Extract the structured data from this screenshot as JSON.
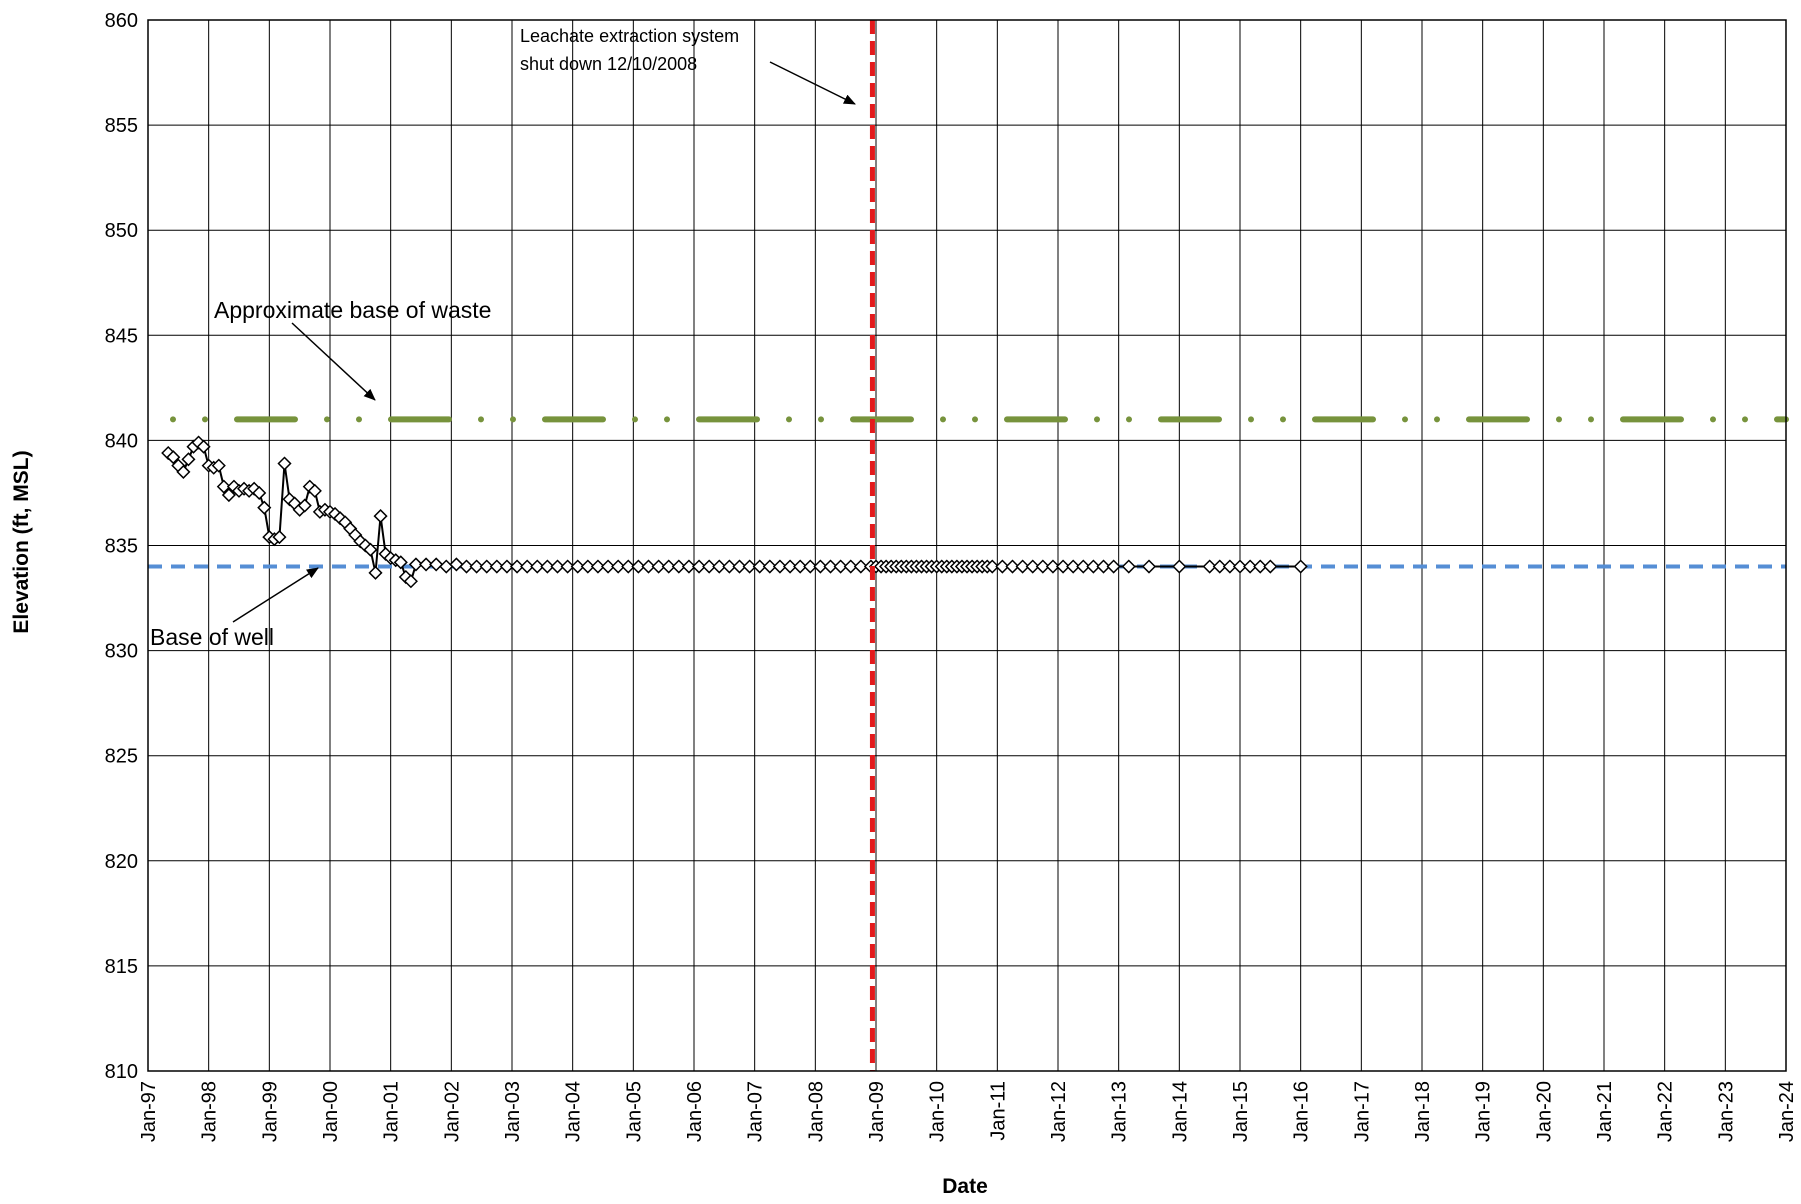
{
  "chart_data": {
    "type": "scatter",
    "title": "",
    "xlabel": "Date",
    "ylabel": "Elevation (ft, MSL)",
    "xlim": [
      "1997-01",
      "2024-01"
    ],
    "ylim": [
      810,
      860
    ],
    "grid": true,
    "legend": "none",
    "x_tick_labels": [
      "Jan-97",
      "Jan-98",
      "Jan-99",
      "Jan-00",
      "Jan-01",
      "Jan-02",
      "Jan-03",
      "Jan-04",
      "Jan-05",
      "Jan-06",
      "Jan-07",
      "Jan-08",
      "Jan-09",
      "Jan-10",
      "Jan-11",
      "Jan-12",
      "Jan-13",
      "Jan-14",
      "Jan-15",
      "Jan-16",
      "Jan-17",
      "Jan-18",
      "Jan-19",
      "Jan-20",
      "Jan-21",
      "Jan-22",
      "Jan-23",
      "Jan-24"
    ],
    "y_ticks": [
      810,
      815,
      820,
      825,
      830,
      835,
      840,
      845,
      850,
      855,
      860
    ],
    "colors": {
      "measured": "#000000",
      "base_of_waste": "#77933c",
      "base_of_well": "#558ed5",
      "shutdown": "#e31a1c",
      "grid": "#000000"
    },
    "series": [
      {
        "name": "",
        "marker": "diamond",
        "points": [
          [
            "1997-05",
            839.4
          ],
          [
            "1997-06",
            839.2
          ],
          [
            "1997-07",
            838.8
          ],
          [
            "1997-08",
            838.5
          ],
          [
            "1997-09",
            839.1
          ],
          [
            "1997-10",
            839.7
          ],
          [
            "1997-11",
            839.9
          ],
          [
            "1997-12",
            839.7
          ],
          [
            "1998-01",
            838.8
          ],
          [
            "1998-02",
            838.7
          ],
          [
            "1998-03",
            838.8
          ],
          [
            "1998-04",
            837.8
          ],
          [
            "1998-05",
            837.4
          ],
          [
            "1998-06",
            837.8
          ],
          [
            "1998-07",
            837.6
          ],
          [
            "1998-08",
            837.7
          ],
          [
            "1998-09",
            837.6
          ],
          [
            "1998-10",
            837.7
          ],
          [
            "1998-11",
            837.5
          ],
          [
            "1998-12",
            836.8
          ],
          [
            "1999-01",
            835.4
          ],
          [
            "1999-02",
            835.3
          ],
          [
            "1999-03",
            835.4
          ],
          [
            "1999-04",
            838.9
          ],
          [
            "1999-05",
            837.2
          ],
          [
            "1999-06",
            837.0
          ],
          [
            "1999-07",
            836.7
          ],
          [
            "1999-08",
            836.9
          ],
          [
            "1999-09",
            837.8
          ],
          [
            "1999-10",
            837.6
          ],
          [
            "1999-11",
            836.6
          ],
          [
            "1999-12",
            836.7
          ],
          [
            "2000-01",
            836.6
          ],
          [
            "2000-02",
            836.5
          ],
          [
            "2000-03",
            836.3
          ],
          [
            "2000-04",
            836.1
          ],
          [
            "2000-05",
            835.8
          ],
          [
            "2000-06",
            835.5
          ],
          [
            "2000-07",
            835.2
          ],
          [
            "2000-08",
            835.0
          ],
          [
            "2000-09",
            834.8
          ],
          [
            "2000-10",
            833.7
          ],
          [
            "2000-11",
            836.4
          ],
          [
            "2000-12",
            834.6
          ],
          [
            "2001-01",
            834.4
          ],
          [
            "2001-02",
            834.3
          ],
          [
            "2001-03",
            834.2
          ],
          [
            "2001-04",
            833.5
          ],
          [
            "2001-05",
            833.3
          ],
          [
            "2001-06",
            834.1
          ],
          [
            "2001-08",
            834.1
          ],
          [
            "2001-10",
            834.1
          ],
          [
            "2001-12",
            834.0
          ],
          [
            "2002-02",
            834.1
          ],
          [
            "2002-04",
            834.0
          ],
          [
            "2002-06",
            834.0
          ],
          [
            "2002-08",
            834.0
          ],
          [
            "2002-10",
            834.0
          ],
          [
            "2002-12",
            834.0
          ],
          [
            "2003-02",
            834.0
          ],
          [
            "2003-04",
            834.0
          ],
          [
            "2003-06",
            834.0
          ],
          [
            "2003-08",
            834.0
          ],
          [
            "2003-10",
            834.0
          ],
          [
            "2003-12",
            834.0
          ],
          [
            "2004-02",
            834.0
          ],
          [
            "2004-04",
            834.0
          ],
          [
            "2004-06",
            834.0
          ],
          [
            "2004-08",
            834.0
          ],
          [
            "2004-10",
            834.0
          ],
          [
            "2004-12",
            834.0
          ],
          [
            "2005-02",
            834.0
          ],
          [
            "2005-04",
            834.0
          ],
          [
            "2005-06",
            834.0
          ],
          [
            "2005-08",
            834.0
          ],
          [
            "2005-10",
            834.0
          ],
          [
            "2005-12",
            834.0
          ],
          [
            "2006-02",
            834.0
          ],
          [
            "2006-04",
            834.0
          ],
          [
            "2006-06",
            834.0
          ],
          [
            "2006-08",
            834.0
          ],
          [
            "2006-10",
            834.0
          ],
          [
            "2006-12",
            834.0
          ],
          [
            "2007-02",
            834.0
          ],
          [
            "2007-04",
            834.0
          ],
          [
            "2007-06",
            834.0
          ],
          [
            "2007-08",
            834.0
          ],
          [
            "2007-10",
            834.0
          ],
          [
            "2007-12",
            834.0
          ],
          [
            "2008-02",
            834.0
          ],
          [
            "2008-04",
            834.0
          ],
          [
            "2008-06",
            834.0
          ],
          [
            "2008-08",
            834.0
          ],
          [
            "2008-10",
            834.0
          ],
          [
            "2008-12",
            834.0
          ],
          [
            "2009-01",
            834.0
          ],
          [
            "2009-02",
            834.0
          ],
          [
            "2009-03",
            834.0
          ],
          [
            "2009-04",
            834.0
          ],
          [
            "2009-05",
            834.0
          ],
          [
            "2009-06",
            834.0
          ],
          [
            "2009-07",
            834.0
          ],
          [
            "2009-08",
            834.0
          ],
          [
            "2009-09",
            834.0
          ],
          [
            "2009-10",
            834.0
          ],
          [
            "2009-11",
            834.0
          ],
          [
            "2009-12",
            834.0
          ],
          [
            "2010-01",
            834.0
          ],
          [
            "2010-02",
            834.0
          ],
          [
            "2010-03",
            834.0
          ],
          [
            "2010-04",
            834.0
          ],
          [
            "2010-05",
            834.0
          ],
          [
            "2010-06",
            834.0
          ],
          [
            "2010-07",
            834.0
          ],
          [
            "2010-08",
            834.0
          ],
          [
            "2010-09",
            834.0
          ],
          [
            "2010-10",
            834.0
          ],
          [
            "2010-11",
            834.0
          ],
          [
            "2010-12",
            834.0
          ],
          [
            "2011-02",
            834.0
          ],
          [
            "2011-04",
            834.0
          ],
          [
            "2011-06",
            834.0
          ],
          [
            "2011-08",
            834.0
          ],
          [
            "2011-10",
            834.0
          ],
          [
            "2011-12",
            834.0
          ],
          [
            "2012-02",
            834.0
          ],
          [
            "2012-04",
            834.0
          ],
          [
            "2012-06",
            834.0
          ],
          [
            "2012-08",
            834.0
          ],
          [
            "2012-10",
            834.0
          ],
          [
            "2012-12",
            834.0
          ],
          [
            "2013-03",
            834.0
          ],
          [
            "2013-07",
            834.0
          ],
          [
            "2014-01",
            834.0
          ],
          [
            "2014-07",
            834.0
          ],
          [
            "2014-09",
            834.0
          ],
          [
            "2014-11",
            834.0
          ],
          [
            "2015-01",
            834.0
          ],
          [
            "2015-03",
            834.0
          ],
          [
            "2015-05",
            834.0
          ],
          [
            "2015-07",
            834.0
          ],
          [
            "2016-01",
            834.0
          ]
        ]
      }
    ],
    "reference_lines": [
      {
        "name": "Approximate base of waste",
        "orientation": "horizontal",
        "y": 841,
        "style": "dash-dot"
      },
      {
        "name": "Base of well",
        "orientation": "horizontal",
        "y": 834,
        "style": "dashed"
      },
      {
        "name": "Leachate extraction system shut down 12/10/2008",
        "orientation": "vertical",
        "x": "2008-12-10",
        "style": "dashed"
      }
    ],
    "annotations": [
      {
        "text": "Leachate extraction system",
        "target": [
          "2008-12-10",
          856
        ]
      },
      {
        "text": "shut down 12/10/2008",
        "target": [
          "2008-12-10",
          856
        ]
      },
      {
        "text": "Approximate base of waste",
        "target": [
          "2000-10",
          841.5
        ]
      },
      {
        "text": "Base of well",
        "target": [
          "1999-09",
          834.3
        ]
      }
    ]
  }
}
